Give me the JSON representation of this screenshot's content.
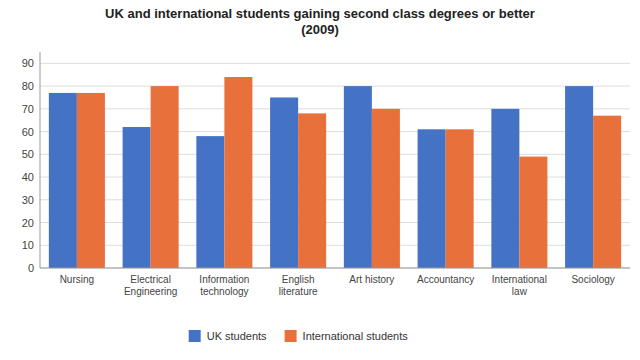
{
  "chart_data": {
    "type": "bar",
    "title": "UK and international students gaining second class degrees or better\n(2009)",
    "categories": [
      "Nursing",
      "Electrical\nEngineering",
      "Information\ntechnology",
      "English\nliterature",
      "Art history",
      "Accountancy",
      "International\nlaw",
      "Sociology"
    ],
    "series": [
      {
        "name": "UK students",
        "color": "#4472C4",
        "values": [
          77,
          62,
          58,
          75,
          80,
          61,
          70,
          80
        ]
      },
      {
        "name": "International students",
        "color": "#E8703A",
        "values": [
          77,
          80,
          84,
          68,
          70,
          61,
          49,
          67
        ]
      }
    ],
    "ylim": [
      0,
      95
    ],
    "yticks": [
      0,
      10,
      20,
      30,
      40,
      50,
      60,
      70,
      80,
      90
    ],
    "grid": true,
    "legend": "bottom"
  }
}
